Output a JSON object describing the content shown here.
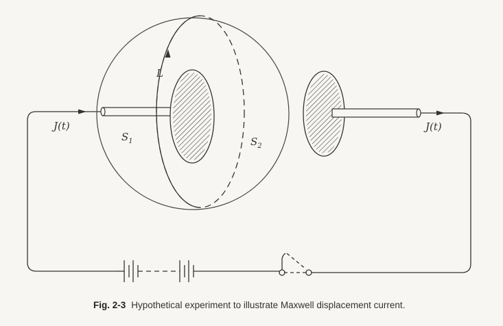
{
  "labels": {
    "current_left": "J(t)",
    "current_right": "J(t)",
    "contour": "L",
    "surface1": "S",
    "surface1_sub": "1",
    "surface2": "S",
    "surface2_sub": "2"
  },
  "caption": {
    "figure_number": "Fig. 2-3",
    "text": "Hypothetical experiment to illustrate Maxwell displacement current."
  }
}
